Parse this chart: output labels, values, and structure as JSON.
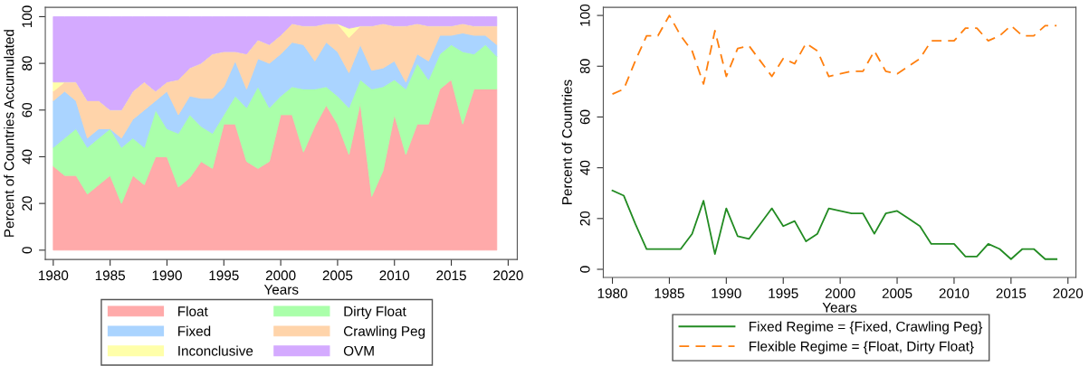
{
  "chart_data": [
    {
      "type": "area",
      "stacked": true,
      "xlabel": "Years",
      "ylabel": "Percent of Countries Accumulated",
      "x": [
        1980,
        1981,
        1982,
        1983,
        1984,
        1985,
        1986,
        1987,
        1988,
        1989,
        1990,
        1991,
        1992,
        1993,
        1994,
        1995,
        1996,
        1997,
        1998,
        1999,
        2000,
        2001,
        2002,
        2003,
        2004,
        2005,
        2006,
        2007,
        2008,
        2009,
        2010,
        2011,
        2012,
        2013,
        2014,
        2015,
        2016,
        2017,
        2018,
        2019
      ],
      "xlim": [
        1979.3,
        2020.8
      ],
      "xticks": [
        1980,
        1985,
        1990,
        1995,
        2000,
        2005,
        2010,
        2015,
        2020
      ],
      "ylim": [
        -4,
        104
      ],
      "yticks": [
        0,
        20,
        40,
        60,
        80,
        100
      ],
      "grid": false,
      "legend": "bottom",
      "series": [
        {
          "name": "Float",
          "color": "#ffaaaa",
          "values": [
            36,
            32,
            32,
            24,
            28,
            32,
            20,
            32,
            28,
            40,
            40,
            27,
            31,
            38,
            35,
            54,
            54,
            38,
            35,
            38,
            58,
            58,
            42,
            53,
            62,
            54,
            41,
            63,
            23,
            34,
            58,
            41,
            54,
            54,
            69,
            73,
            54,
            69,
            69,
            69
          ]
        },
        {
          "name": "Dirty Float",
          "color": "#aaffaa",
          "values": [
            8,
            16,
            20,
            20,
            20,
            20,
            24,
            16,
            16,
            20,
            12,
            23,
            27,
            15,
            15,
            4,
            12,
            23,
            35,
            23,
            8,
            12,
            27,
            16,
            8,
            12,
            20,
            10,
            46,
            36,
            15,
            28,
            26,
            19,
            15,
            15,
            31,
            15,
            19,
            14
          ]
        },
        {
          "name": "Fixed",
          "color": "#aad4ff",
          "values": [
            20,
            20,
            12,
            4,
            4,
            0,
            4,
            8,
            16,
            4,
            16,
            8,
            8,
            12,
            15,
            12,
            15,
            8,
            12,
            19,
            18,
            19,
            19,
            12,
            19,
            19,
            15,
            15,
            8,
            8,
            8,
            3,
            4,
            8,
            8,
            4,
            8,
            8,
            4,
            5
          ]
        },
        {
          "name": "Crawling Peg",
          "color": "#ffd4aa",
          "values": [
            4,
            4,
            8,
            16,
            12,
            8,
            12,
            12,
            12,
            4,
            4,
            15,
            12,
            15,
            19,
            15,
            4,
            15,
            8,
            8,
            8,
            8,
            8,
            15,
            8,
            12,
            15,
            8,
            19,
            19,
            15,
            24,
            13,
            15,
            4,
            4,
            4,
            4,
            4,
            8
          ]
        },
        {
          "name": "Inconclusive",
          "color": "#ffffaa",
          "values": [
            4,
            0,
            0,
            0,
            0,
            0,
            0,
            0,
            0,
            0,
            0,
            0,
            0,
            0,
            0,
            0,
            0,
            0,
            0,
            0,
            0,
            0,
            0,
            0,
            0,
            0,
            4,
            0,
            0,
            0,
            0,
            0,
            0,
            0,
            0,
            0,
            0,
            0,
            0,
            0
          ]
        },
        {
          "name": "OVM",
          "color": "#d4aaff",
          "values": [
            28,
            28,
            28,
            36,
            36,
            40,
            40,
            32,
            28,
            32,
            28,
            27,
            22,
            20,
            16,
            15,
            15,
            16,
            10,
            12,
            8,
            3,
            4,
            4,
            3,
            3,
            5,
            4,
            4,
            3,
            4,
            4,
            3,
            4,
            4,
            4,
            3,
            4,
            4,
            4
          ]
        }
      ]
    },
    {
      "type": "line",
      "xlabel": "Years",
      "ylabel": "Percent of Countries",
      "x": [
        1980,
        1981,
        1982,
        1983,
        1984,
        1985,
        1986,
        1987,
        1988,
        1989,
        1990,
        1991,
        1992,
        1993,
        1994,
        1995,
        1996,
        1997,
        1998,
        1999,
        2000,
        2001,
        2002,
        2003,
        2004,
        2005,
        2006,
        2007,
        2008,
        2009,
        2010,
        2011,
        2012,
        2013,
        2014,
        2015,
        2016,
        2017,
        2018,
        2019
      ],
      "xlim": [
        1979.2,
        2020.7
      ],
      "xticks": [
        1980,
        1985,
        1990,
        1995,
        2000,
        2005,
        2010,
        2015,
        2020
      ],
      "ylim": [
        -3.2,
        103.2
      ],
      "yticks": [
        0,
        20,
        40,
        60,
        80,
        100
      ],
      "grid": false,
      "legend": "bottom",
      "marker": "none",
      "series": [
        {
          "name": "Fixed Regime = {Fixed, Crawling Peg}",
          "color": "#228b22",
          "line_style": "solid",
          "values": [
            31,
            29,
            18,
            8,
            8,
            8,
            8,
            14,
            27,
            6,
            24,
            13,
            12,
            18,
            24,
            17,
            19,
            11,
            14,
            24,
            23,
            22,
            22,
            14,
            22,
            23,
            20,
            17,
            10,
            10,
            10,
            5,
            5,
            10,
            8,
            4,
            8,
            8,
            4,
            4
          ]
        },
        {
          "name": "Flexible Regime = {Float, Dirty Float}",
          "color": "#ff7f0e",
          "line_style": "dashed",
          "values": [
            69,
            71,
            82,
            92,
            92,
            100,
            92,
            86,
            73,
            94,
            76,
            87,
            88,
            82,
            76,
            83,
            81,
            89,
            86,
            76,
            77,
            78,
            78,
            86,
            78,
            77,
            80,
            83,
            90,
            90,
            90,
            95,
            95,
            90,
            92,
            96,
            92,
            92,
            96,
            96
          ]
        }
      ]
    }
  ]
}
